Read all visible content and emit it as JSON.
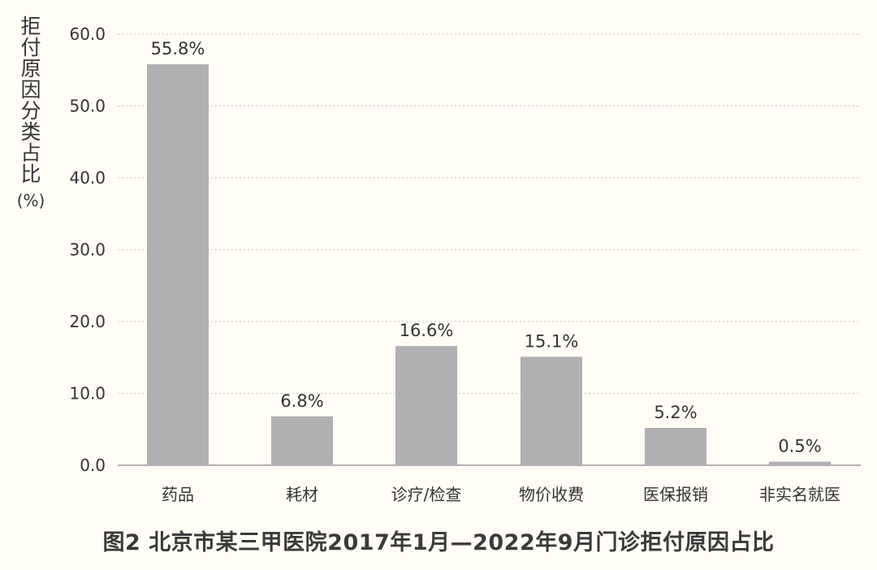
{
  "caption": "图2 北京市某三甲医院2017年1月—2022年9月门诊拒付原因占比",
  "chart_data": {
    "type": "bar",
    "title": "",
    "ylabel": "拒付原因分类占比",
    "ylabel_unit": "(%)",
    "xlabel": "",
    "ylim": [
      0,
      60
    ],
    "yticks": [
      "0.0",
      "10.0",
      "20.0",
      "30.0",
      "40.0",
      "50.0",
      "60.0"
    ],
    "grid": "horizontal dotted",
    "categories": [
      "药品",
      "耗材",
      "诊疗/检查",
      "物价收费",
      "医保报销",
      "非实名就医"
    ],
    "values": [
      55.8,
      6.8,
      16.6,
      15.1,
      5.2,
      0.5
    ],
    "value_labels": [
      "55.8%",
      "6.8%",
      "16.6%",
      "15.1%",
      "5.2%",
      "0.5%"
    ],
    "colors": {
      "bar": "#b0b0b3",
      "grid": "#cfcfcf",
      "axis": "#9a9a9a",
      "background": "#fffdf6"
    }
  }
}
